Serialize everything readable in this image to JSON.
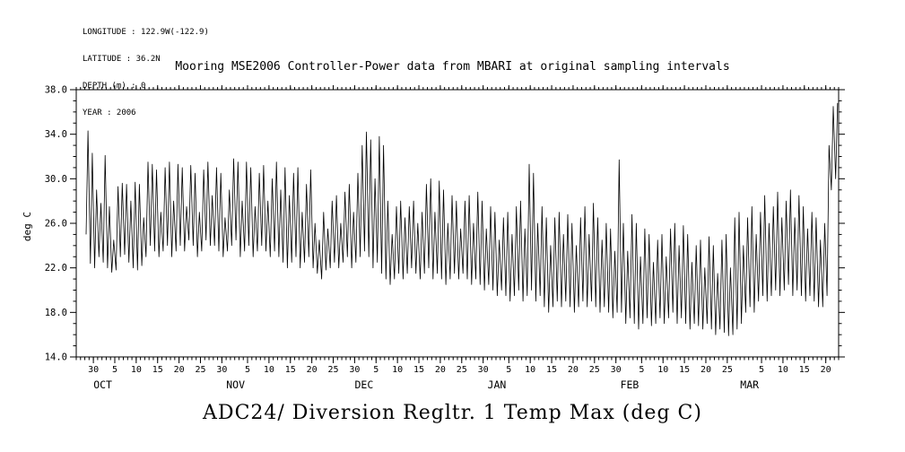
{
  "header": {
    "lines": [
      "LONGITUDE : 122.9W(-122.9)",
      "LATITUDE : 36.2N",
      "DEPTH (m) : 0",
      "YEAR : 2006"
    ]
  },
  "chart_data": {
    "type": "line",
    "title": "Mooring MSE2006 Controller-Power data from MBARI at original sampling intervals",
    "bottom_title": "ADC24/ Diversion Regltr. 1 Temp Max (deg C)",
    "ylabel": "deg C",
    "ylim": [
      14.0,
      38.0
    ],
    "y_major_ticks": [
      14,
      18,
      22,
      26,
      30,
      34,
      38
    ],
    "y_tick_labels": [
      "14.0",
      "18.0",
      "22.0",
      "26.0",
      "30.0",
      "34.0",
      "38.0"
    ],
    "y_minor_step": 1,
    "line_color": "#000000",
    "grid": false,
    "legend": "none",
    "x_axis": {
      "domain_days": [
        0,
        178
      ],
      "ticks": [
        {
          "day": 4,
          "label": "30"
        },
        {
          "day": 9,
          "label": "5"
        },
        {
          "day": 14,
          "label": "10"
        },
        {
          "day": 19,
          "label": "15"
        },
        {
          "day": 24,
          "label": "20"
        },
        {
          "day": 29,
          "label": "25"
        },
        {
          "day": 34,
          "label": "30"
        },
        {
          "day": 40,
          "label": "5"
        },
        {
          "day": 45,
          "label": "10"
        },
        {
          "day": 50,
          "label": "15"
        },
        {
          "day": 55,
          "label": "20"
        },
        {
          "day": 60,
          "label": "25"
        },
        {
          "day": 65,
          "label": "30"
        },
        {
          "day": 70,
          "label": "5"
        },
        {
          "day": 75,
          "label": "10"
        },
        {
          "day": 80,
          "label": "15"
        },
        {
          "day": 85,
          "label": "20"
        },
        {
          "day": 90,
          "label": "25"
        },
        {
          "day": 95,
          "label": "30"
        },
        {
          "day": 101,
          "label": "5"
        },
        {
          "day": 106,
          "label": "10"
        },
        {
          "day": 111,
          "label": "15"
        },
        {
          "day": 116,
          "label": "20"
        },
        {
          "day": 121,
          "label": "25"
        },
        {
          "day": 126,
          "label": "30"
        },
        {
          "day": 132,
          "label": "5"
        },
        {
          "day": 137,
          "label": "10"
        },
        {
          "day": 142,
          "label": "15"
        },
        {
          "day": 147,
          "label": "20"
        },
        {
          "day": 152,
          "label": "25"
        },
        {
          "day": 160,
          "label": "5"
        },
        {
          "day": 165,
          "label": "10"
        },
        {
          "day": 170,
          "label": "15"
        },
        {
          "day": 175,
          "label": "20"
        }
      ],
      "months": [
        {
          "label": "OCT",
          "day": 5
        },
        {
          "label": "NOV",
          "day": 36
        },
        {
          "label": "DEC",
          "day": 66
        },
        {
          "label": "JAN",
          "day": 97
        },
        {
          "label": "FEB",
          "day": 128
        },
        {
          "label": "MAR",
          "day": 156
        }
      ]
    },
    "series": [
      {
        "name": "ADC24/ Diversion Regltr. 1 Temp Max",
        "units": "deg C",
        "data_start_day": 2,
        "daily_max": [
          34.3,
          32.3,
          29.0,
          27.8,
          32.1,
          27.5,
          24.5,
          29.3,
          29.6,
          29.5,
          28.0,
          29.7,
          29.5,
          26.5,
          31.5,
          31.3,
          30.8,
          27.0,
          31.0,
          31.5,
          28.0,
          31.3,
          31.0,
          27.5,
          31.2,
          30.5,
          27.0,
          30.8,
          31.5,
          28.5,
          31.0,
          30.5,
          26.5,
          29.0,
          31.8,
          31.5,
          28.0,
          31.5,
          31.0,
          27.5,
          30.5,
          31.2,
          28.0,
          30.0,
          31.5,
          29.0,
          31.0,
          28.5,
          30.5,
          31.0,
          27.0,
          29.5,
          30.8,
          26.0,
          24.5,
          27.0,
          25.5,
          28.0,
          28.5,
          26.0,
          28.8,
          29.5,
          27.0,
          30.5,
          33.0,
          34.2,
          33.5,
          30.0,
          33.8,
          33.0,
          28.0,
          25.0,
          27.5,
          28.0,
          26.5,
          27.5,
          28.0,
          26.0,
          27.0,
          29.5,
          30.0,
          27.0,
          29.8,
          29.0,
          26.0,
          28.5,
          28.0,
          25.5,
          28.0,
          28.5,
          26.0,
          28.8,
          28.0,
          25.5,
          27.5,
          27.0,
          24.5,
          26.5,
          27.0,
          25.0,
          27.5,
          28.0,
          25.5,
          31.3,
          30.5,
          26.0,
          27.5,
          26.5,
          24.0,
          26.5,
          27.0,
          25.0,
          26.8,
          26.0,
          24.0,
          26.5,
          27.5,
          25.0,
          27.8,
          26.5,
          24.5,
          26.0,
          25.5,
          23.5,
          31.7,
          26.0,
          23.5,
          26.8,
          26.0,
          23.0,
          25.5,
          25.0,
          22.5,
          24.5,
          25.0,
          23.0,
          25.5,
          26.0,
          24.0,
          25.8,
          25.0,
          22.5,
          24.0,
          24.5,
          22.0,
          24.8,
          24.0,
          21.5,
          24.5,
          25.0,
          22.0,
          26.5,
          27.0,
          24.0,
          26.5,
          27.5,
          25.0,
          27.0,
          28.5,
          26.0,
          27.5,
          28.8,
          26.5,
          28.0,
          29.0,
          26.5,
          28.5,
          27.5,
          25.5,
          27.0,
          26.5,
          24.5,
          26.0,
          33.0,
          36.5,
          36.8
        ],
        "daily_min": [
          25.0,
          22.4,
          22.0,
          23.0,
          22.5,
          22.0,
          21.6,
          21.8,
          23.0,
          23.2,
          22.5,
          22.0,
          21.8,
          22.2,
          23.0,
          24.0,
          23.5,
          23.0,
          23.5,
          24.0,
          23.0,
          23.5,
          24.0,
          23.5,
          24.5,
          24.0,
          23.0,
          23.5,
          24.5,
          24.0,
          24.0,
          23.5,
          23.0,
          23.5,
          24.0,
          24.5,
          23.0,
          23.5,
          24.0,
          23.0,
          23.5,
          24.0,
          23.5,
          23.0,
          23.5,
          23.0,
          22.5,
          22.0,
          22.5,
          23.0,
          22.0,
          22.5,
          23.0,
          22.0,
          21.5,
          21.0,
          21.8,
          22.0,
          22.5,
          22.0,
          22.5,
          23.0,
          22.0,
          22.5,
          23.0,
          23.5,
          23.0,
          22.0,
          22.5,
          21.5,
          21.0,
          20.5,
          21.0,
          21.5,
          21.0,
          21.5,
          22.0,
          21.5,
          21.0,
          21.5,
          22.0,
          21.0,
          21.5,
          21.0,
          20.5,
          21.0,
          21.5,
          21.0,
          21.5,
          21.0,
          20.5,
          21.0,
          20.5,
          20.0,
          20.5,
          20.0,
          19.5,
          20.0,
          19.5,
          19.0,
          19.5,
          20.0,
          19.0,
          19.5,
          20.0,
          19.0,
          19.5,
          18.5,
          18.0,
          18.5,
          19.0,
          18.5,
          19.0,
          18.5,
          18.0,
          18.5,
          19.0,
          18.5,
          19.0,
          18.5,
          18.0,
          18.5,
          18.0,
          17.5,
          18.0,
          18.0,
          17.0,
          17.5,
          17.0,
          16.5,
          17.0,
          17.5,
          16.8,
          17.0,
          17.5,
          17.0,
          17.5,
          18.0,
          17.0,
          17.5,
          17.0,
          16.5,
          17.0,
          16.8,
          16.5,
          17.0,
          16.5,
          16.0,
          16.5,
          16.2,
          15.9,
          16.0,
          16.5,
          17.0,
          18.0,
          18.5,
          18.0,
          19.0,
          19.5,
          19.0,
          19.5,
          20.0,
          19.5,
          20.0,
          20.5,
          19.5,
          20.0,
          19.5,
          19.0,
          19.5,
          19.0,
          18.5,
          18.5,
          19.5,
          29.0,
          30.0
        ]
      }
    ]
  }
}
